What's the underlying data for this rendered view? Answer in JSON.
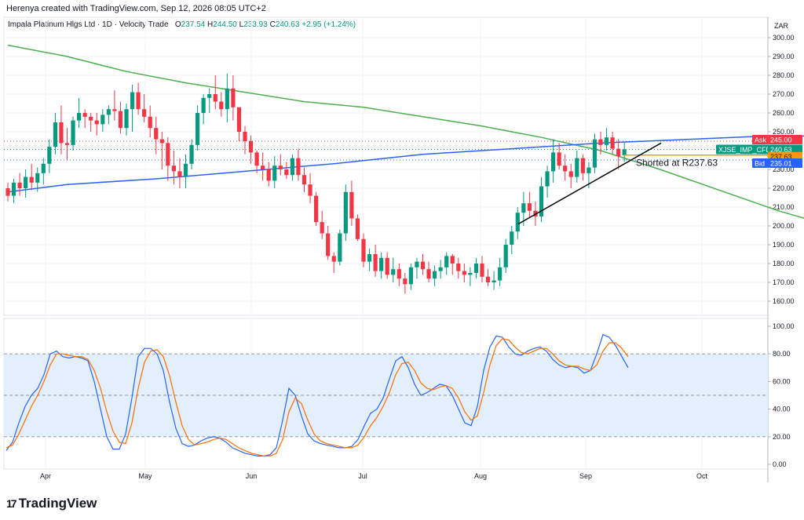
{
  "header": {
    "created_by": "Herenya created with TradingView.com, Sep 12, 2026 08:05 UTC+2"
  },
  "legend": {
    "title": "Impala Platinum Hlgs Ltd · 1D · Velocity Trade",
    "open_label": "O",
    "open": "237.54",
    "high_label": "H",
    "high": "244.50",
    "low_label": "L",
    "low": "233.93",
    "close_label": "C",
    "close": "240.63",
    "change": "+2.95 (+1.24%)"
  },
  "currency": "ZAR",
  "price_axis_labels": [
    "300.00",
    "290.00",
    "280.00",
    "270.00",
    "260.00",
    "250.00",
    "240.00",
    "230.00",
    "220.00",
    "210.00",
    "200.00",
    "190.00",
    "180.00",
    "170.00",
    "160.00"
  ],
  "osc_axis_labels": [
    "100.00",
    "80.00",
    "60.00",
    "40.00",
    "20.00",
    "0.00"
  ],
  "time_axis_labels": [
    "Apr",
    "May",
    "Jun",
    "Jul",
    "Aug",
    "Sep",
    "Oct"
  ],
  "price_tags": {
    "ask_label": "Ask",
    "ask": "245.00",
    "symbol": "XJSE_IMP_CFD",
    "last": "240.63",
    "short_level": "237.63",
    "bid_label": "Bid",
    "bid": "235.01"
  },
  "annotation": "Shorted at R237.63",
  "footer": {
    "brand": "TradingView",
    "logo_mark": "17"
  },
  "colors": {
    "up": "#089981",
    "down": "#f23645",
    "ma_slow": "#2962ff",
    "ma_fast": "#4caf50",
    "stoch_k": "#2962ff",
    "stoch_d": "#ff6d00",
    "ask": "#f23645",
    "bid": "#2962ff",
    "last": "#089981",
    "short_line": "#ff9800",
    "band": "#e3effd"
  },
  "chart_data": [
    {
      "type": "candlestick",
      "ylim": [
        160,
        300
      ],
      "x_ticks": [
        "Apr",
        "May",
        "Jun",
        "Jul",
        "Aug",
        "Sep",
        "Oct"
      ],
      "candles": [
        [
          220,
          223,
          213,
          216
        ],
        [
          216,
          225,
          212,
          223
        ],
        [
          223,
          228,
          216,
          220
        ],
        [
          220,
          230,
          215,
          226
        ],
        [
          226,
          233,
          219,
          223
        ],
        [
          223,
          231,
          218,
          228
        ],
        [
          228,
          236,
          222,
          233
        ],
        [
          233,
          246,
          228,
          242
        ],
        [
          242,
          260,
          238,
          255
        ],
        [
          255,
          264,
          238,
          244
        ],
        [
          244,
          252,
          235,
          243
        ],
        [
          243,
          258,
          240,
          256
        ],
        [
          256,
          268,
          252,
          260
        ],
        [
          260,
          262,
          252,
          258
        ],
        [
          258,
          260,
          250,
          256
        ],
        [
          256,
          260,
          248,
          254
        ],
        [
          254,
          262,
          250,
          259
        ],
        [
          259,
          264,
          254,
          262
        ],
        [
          262,
          272,
          256,
          261
        ],
        [
          261,
          266,
          249,
          252
        ],
        [
          252,
          265,
          248,
          262
        ],
        [
          262,
          275,
          250,
          271
        ],
        [
          271,
          276,
          259,
          262
        ],
        [
          262,
          270,
          255,
          258
        ],
        [
          258,
          264,
          247,
          252
        ],
        [
          252,
          258,
          238,
          246
        ],
        [
          246,
          250,
          230,
          244
        ],
        [
          244,
          247,
          224,
          232
        ],
        [
          232,
          240,
          222,
          229
        ],
        [
          229,
          236,
          220,
          226
        ],
        [
          226,
          238,
          220,
          233
        ],
        [
          233,
          246,
          230,
          243
        ],
        [
          243,
          264,
          240,
          260
        ],
        [
          260,
          270,
          254,
          268
        ],
        [
          268,
          273,
          260,
          270
        ],
        [
          270,
          280,
          262,
          266
        ],
        [
          266,
          271,
          258,
          262
        ],
        [
          262,
          281,
          255,
          273
        ],
        [
          273,
          280,
          256,
          263
        ],
        [
          263,
          262,
          245,
          250
        ],
        [
          250,
          253,
          238,
          245
        ],
        [
          245,
          248,
          233,
          239
        ],
        [
          239,
          240,
          228,
          232
        ],
        [
          232,
          239,
          224,
          230
        ],
        [
          230,
          234,
          221,
          224
        ],
        [
          224,
          237,
          220,
          232
        ],
        [
          232,
          238,
          227,
          230
        ],
        [
          230,
          234,
          225,
          227
        ],
        [
          227,
          238,
          224,
          236
        ],
        [
          236,
          241,
          224,
          227
        ],
        [
          227,
          231,
          218,
          222
        ],
        [
          222,
          228,
          212,
          216
        ],
        [
          216,
          218,
          200,
          202
        ],
        [
          202,
          208,
          193,
          196
        ],
        [
          196,
          200,
          182,
          184
        ],
        [
          184,
          186,
          175,
          181
        ],
        [
          181,
          198,
          179,
          196
        ],
        [
          196,
          222,
          192,
          218
        ],
        [
          218,
          224,
          200,
          204
        ],
        [
          204,
          206,
          192,
          193
        ],
        [
          193,
          196,
          178,
          181
        ],
        [
          181,
          188,
          176,
          185
        ],
        [
          185,
          190,
          173,
          176
        ],
        [
          176,
          186,
          172,
          183
        ],
        [
          183,
          186,
          172,
          174
        ],
        [
          174,
          183,
          170,
          177
        ],
        [
          177,
          180,
          168,
          172
        ],
        [
          172,
          175,
          164,
          169
        ],
        [
          169,
          180,
          166,
          178
        ],
        [
          178,
          183,
          172,
          181
        ],
        [
          181,
          185,
          174,
          177
        ],
        [
          177,
          181,
          170,
          172
        ],
        [
          172,
          179,
          168,
          176
        ],
        [
          176,
          182,
          172,
          178
        ],
        [
          178,
          186,
          174,
          184
        ],
        [
          184,
          185,
          174,
          180
        ],
        [
          180,
          183,
          172,
          176
        ],
        [
          176,
          180,
          170,
          174
        ],
        [
          174,
          178,
          168,
          175
        ],
        [
          175,
          183,
          172,
          180
        ],
        [
          180,
          184,
          170,
          173
        ],
        [
          173,
          177,
          168,
          170
        ],
        [
          170,
          176,
          166,
          171
        ],
        [
          171,
          183,
          168,
          178
        ],
        [
          178,
          193,
          175,
          190
        ],
        [
          190,
          200,
          185,
          197
        ],
        [
          197,
          210,
          193,
          207
        ],
        [
          207,
          218,
          200,
          212
        ],
        [
          212,
          218,
          204,
          208
        ],
        [
          208,
          213,
          200,
          205
        ],
        [
          205,
          226,
          202,
          221
        ],
        [
          221,
          232,
          215,
          229
        ],
        [
          229,
          246,
          223,
          239
        ],
        [
          239,
          244,
          230,
          232
        ],
        [
          232,
          238,
          224,
          229
        ],
        [
          229,
          233,
          220,
          226
        ],
        [
          226,
          240,
          223,
          236
        ],
        [
          236,
          238,
          224,
          228
        ],
        [
          228,
          234,
          220,
          231
        ],
        [
          231,
          249,
          228,
          246
        ],
        [
          246,
          250,
          238,
          243
        ],
        [
          243,
          252,
          240,
          247
        ],
        [
          247,
          250,
          238,
          241
        ],
        [
          241,
          246,
          230,
          237
        ],
        [
          237.54,
          244.5,
          233.93,
          240.63
        ]
      ],
      "ma_slow": [
        [
          0,
          218
        ],
        [
          10,
          222
        ],
        [
          25,
          225
        ],
        [
          40,
          229
        ],
        [
          55,
          233
        ],
        [
          70,
          238
        ],
        [
          85,
          241
        ],
        [
          100,
          244
        ],
        [
          115,
          246
        ],
        [
          130,
          248
        ],
        [
          145,
          247
        ],
        [
          160,
          245
        ],
        [
          175,
          244
        ],
        [
          190,
          243
        ],
        [
          205,
          244
        ]
      ],
      "ma_fast": [
        [
          0,
          296
        ],
        [
          10,
          290
        ],
        [
          20,
          282
        ],
        [
          30,
          276
        ],
        [
          40,
          271
        ],
        [
          50,
          266
        ],
        [
          60,
          263
        ],
        [
          70,
          258
        ],
        [
          80,
          253
        ],
        [
          90,
          247
        ],
        [
          100,
          240
        ],
        [
          110,
          230
        ],
        [
          120,
          219
        ],
        [
          130,
          208
        ],
        [
          140,
          199
        ],
        [
          150,
          192
        ],
        [
          160,
          189
        ],
        [
          170,
          190
        ],
        [
          180,
          194
        ],
        [
          190,
          199
        ],
        [
          198,
          205
        ]
      ],
      "trendline": {
        "from": [
          "Aug",
          201
        ],
        "to": [
          "Sep",
          244
        ]
      },
      "short_level": 237.63,
      "ask": 245.0,
      "bid": 235.01,
      "last": 240.63
    },
    {
      "type": "line",
      "name": "Stochastic",
      "ylim": [
        0,
        100
      ],
      "band": [
        20,
        80
      ],
      "mid": 50,
      "series": [
        {
          "values": [
            10,
            16,
            30,
            42,
            50,
            55,
            65,
            80,
            82,
            78,
            77,
            78,
            77,
            75,
            60,
            40,
            20,
            11,
            11,
            22,
            48,
            78,
            84,
            84,
            80,
            68,
            45,
            26,
            15,
            13,
            14,
            17,
            19,
            20,
            19,
            16,
            12,
            10,
            8,
            7,
            6,
            6,
            7,
            12,
            32,
            55,
            50,
            35,
            22,
            17,
            15,
            14,
            13,
            12,
            12,
            13,
            18,
            28,
            37,
            40,
            48,
            62,
            75,
            78,
            70,
            58,
            50,
            52,
            55,
            58,
            57,
            50,
            40,
            30,
            28,
            42,
            68,
            85,
            93,
            92,
            85,
            80,
            79,
            82,
            84,
            85,
            82,
            76,
            72,
            70,
            71,
            70,
            66,
            68,
            80,
            94,
            92,
            86,
            78,
            70
          ]
        },
        {
          "values": [
            12,
            14,
            22,
            32,
            42,
            50,
            60,
            72,
            80,
            80,
            79,
            78,
            78,
            76,
            68,
            55,
            38,
            24,
            16,
            15,
            30,
            55,
            74,
            82,
            83,
            78,
            64,
            45,
            28,
            18,
            14,
            15,
            16,
            18,
            19,
            18,
            15,
            12,
            10,
            8,
            7,
            6,
            6,
            8,
            18,
            38,
            48,
            44,
            32,
            22,
            17,
            15,
            14,
            13,
            12,
            12,
            14,
            20,
            28,
            34,
            42,
            52,
            65,
            73,
            74,
            68,
            59,
            55,
            54,
            56,
            57,
            55,
            48,
            38,
            32,
            35,
            52,
            72,
            86,
            91,
            90,
            85,
            81,
            80,
            82,
            84,
            84,
            80,
            75,
            72,
            71,
            71,
            69,
            68,
            72,
            82,
            88,
            88,
            84,
            78
          ]
        }
      ]
    }
  ]
}
